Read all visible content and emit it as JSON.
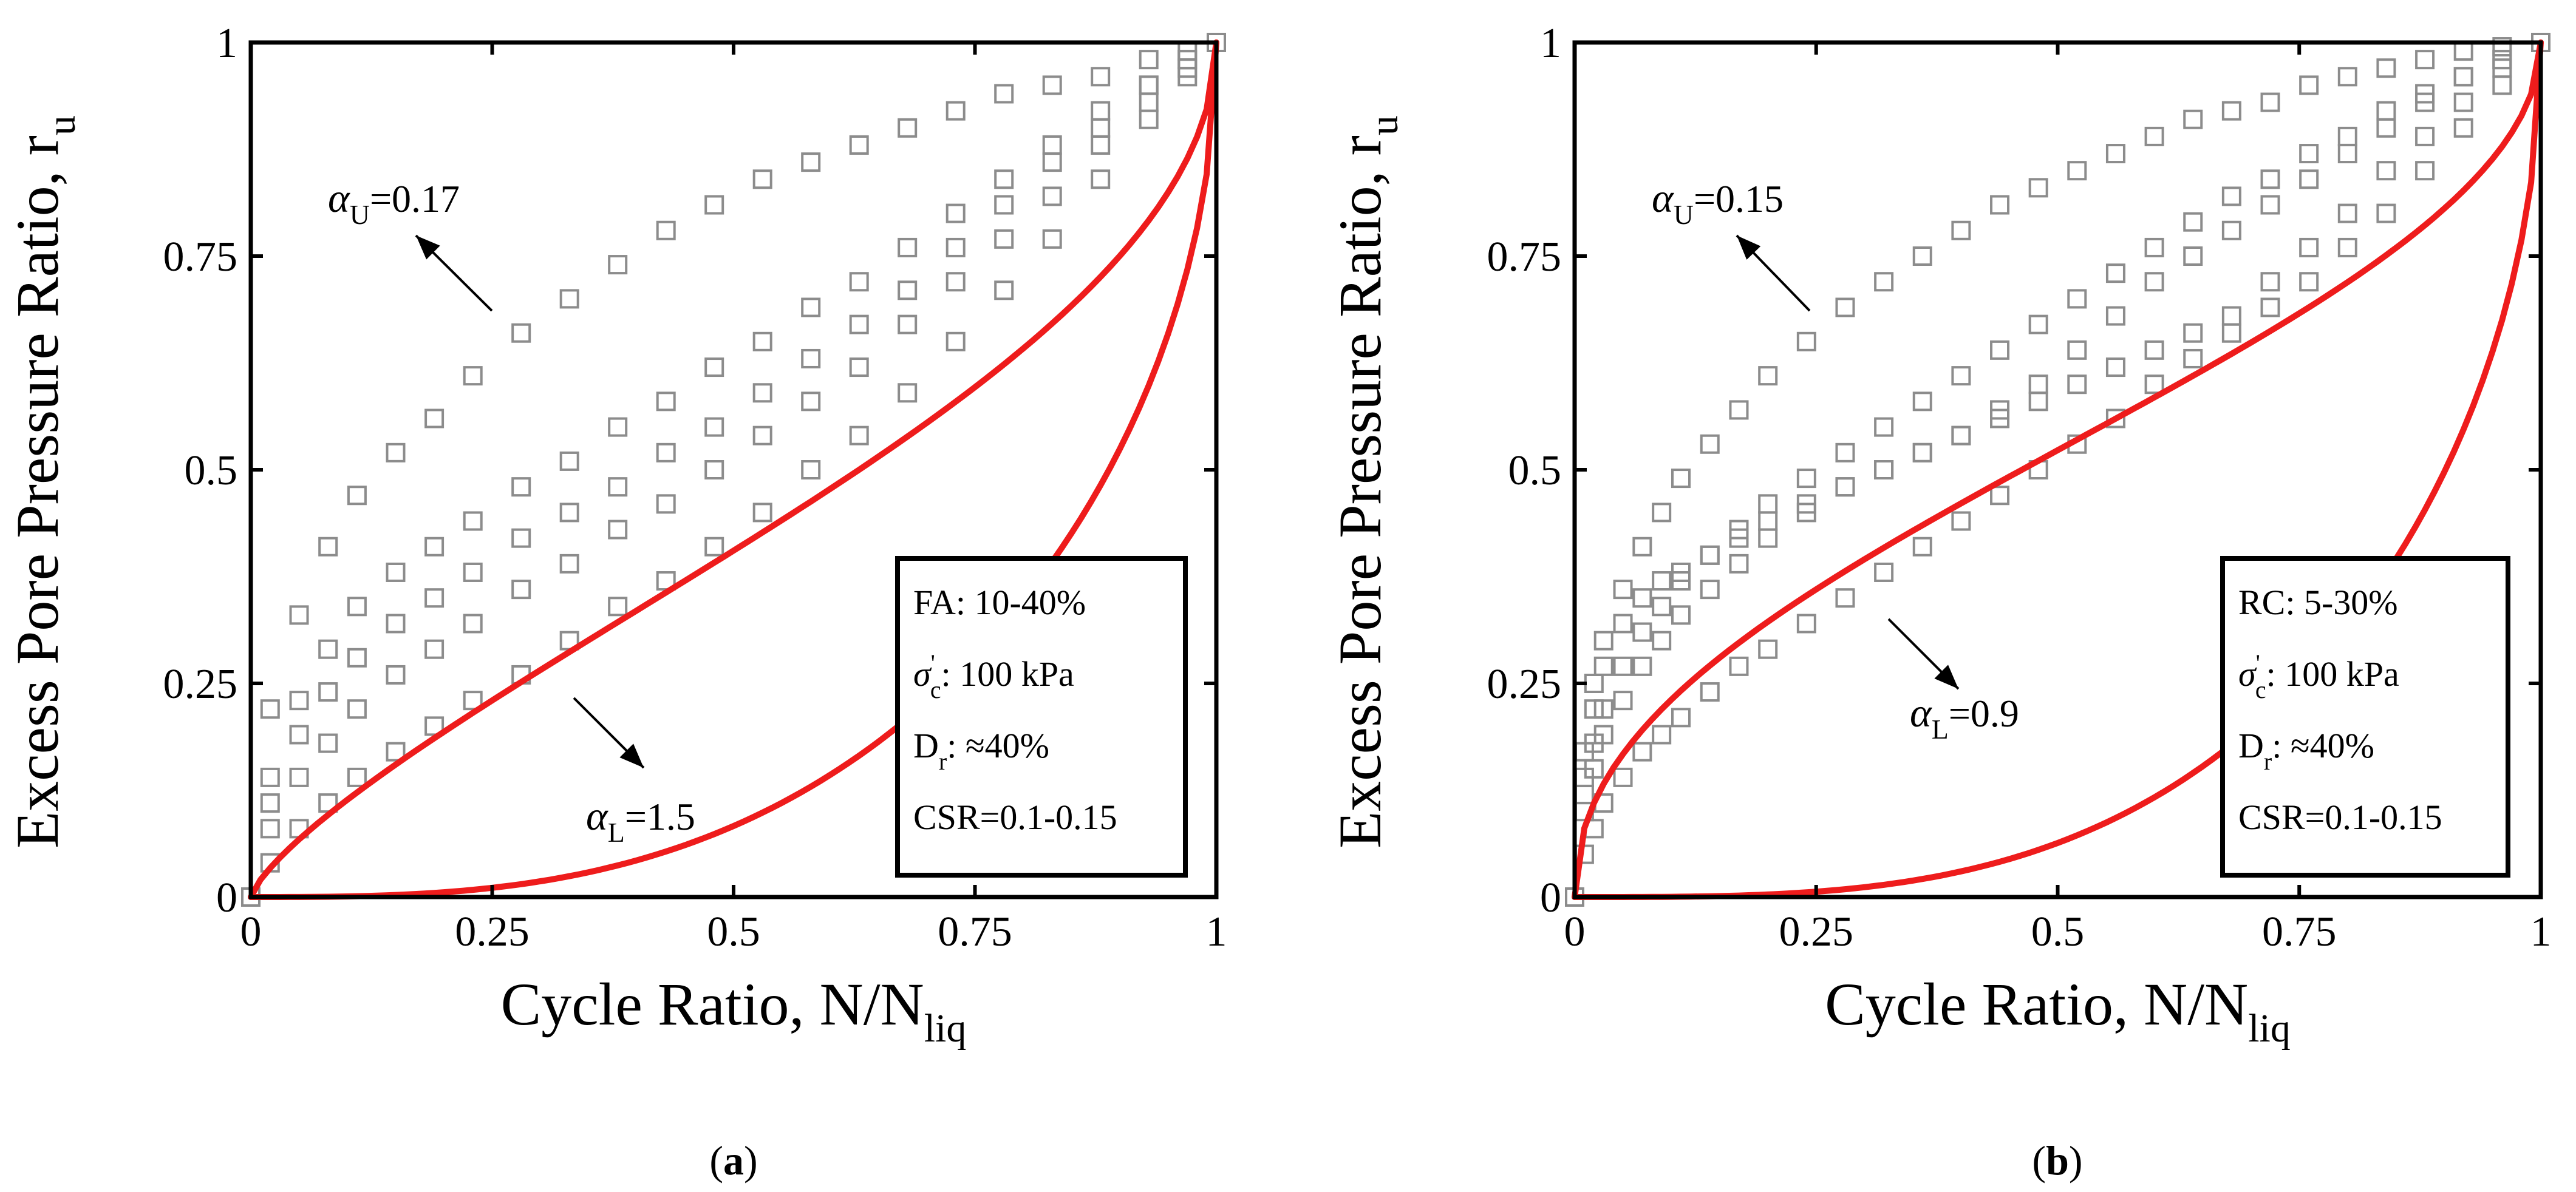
{
  "chart_data": [
    {
      "type": "scatter",
      "panel_label": "a",
      "xlabel": "Cycle Ratio, N/N",
      "xlabel_sub": "liq",
      "ylabel": "Excess Pore Pressure Ratio, r",
      "ylabel_sub": "u",
      "xlim": [
        0,
        1
      ],
      "ylim": [
        0,
        1
      ],
      "xticks": [
        "0",
        "0.25",
        "0.5",
        "0.75",
        "1"
      ],
      "yticks": [
        "0",
        "0.25",
        "0.5",
        "0.75",
        "1"
      ],
      "grid": false,
      "bounds": {
        "upper": {
          "greek": "α",
          "sub": "U",
          "value": "=0.17",
          "alpha": 0.17
        },
        "lower": {
          "greek": "α",
          "sub": "L",
          "value": "=1.5",
          "alpha": 1.5
        }
      },
      "legend": {
        "position": "lower-right",
        "lines": [
          {
            "text": "FA: 10-40%"
          },
          {
            "sym": "σ",
            "sup": "'",
            "sub": "c",
            "text": ": 100 kPa"
          },
          {
            "sym": "D",
            "sub": "r",
            "text": ": ≈40%"
          },
          {
            "text": "CSR=0.1-0.15"
          }
        ]
      },
      "series": [
        {
          "x": [
            0,
            0.02,
            0.05,
            0.08,
            0.11,
            0.15,
            0.19,
            0.23,
            0.28,
            0.33,
            0.38,
            0.43,
            0.48,
            0.53,
            0.58,
            0.63,
            0.68,
            0.73,
            0.78,
            0.83,
            0.88,
            0.93,
            0.97,
            1.0
          ],
          "y": [
            0,
            0.22,
            0.33,
            0.41,
            0.47,
            0.52,
            0.56,
            0.61,
            0.66,
            0.7,
            0.74,
            0.78,
            0.81,
            0.84,
            0.86,
            0.88,
            0.9,
            0.92,
            0.94,
            0.95,
            0.96,
            0.98,
            0.99,
            1.0
          ]
        },
        {
          "x": [
            0,
            0.02,
            0.05,
            0.08,
            0.11,
            0.15,
            0.19,
            0.23,
            0.28,
            0.33,
            0.38,
            0.43,
            0.48,
            0.53,
            0.58,
            0.63,
            0.68,
            0.73,
            0.78,
            0.83,
            0.88,
            0.93,
            0.97,
            1.0
          ],
          "y": [
            0,
            0.14,
            0.23,
            0.29,
            0.34,
            0.38,
            0.41,
            0.44,
            0.48,
            0.51,
            0.55,
            0.58,
            0.62,
            0.65,
            0.69,
            0.72,
            0.76,
            0.8,
            0.84,
            0.88,
            0.92,
            0.95,
            0.98,
            1.0
          ]
        },
        {
          "x": [
            0,
            0.02,
            0.05,
            0.08,
            0.11,
            0.15,
            0.19,
            0.23,
            0.28,
            0.33,
            0.38,
            0.43,
            0.48,
            0.53,
            0.58,
            0.63,
            0.68,
            0.73,
            0.78,
            0.83,
            0.88,
            0.93,
            0.97,
            1.0
          ],
          "y": [
            0,
            0.11,
            0.19,
            0.24,
            0.28,
            0.32,
            0.35,
            0.38,
            0.42,
            0.45,
            0.48,
            0.52,
            0.55,
            0.59,
            0.63,
            0.67,
            0.71,
            0.76,
            0.81,
            0.86,
            0.9,
            0.95,
            0.98,
            1.0
          ]
        },
        {
          "x": [
            0,
            0.02,
            0.05,
            0.08,
            0.11,
            0.15,
            0.19,
            0.23,
            0.28,
            0.33,
            0.38,
            0.43,
            0.48,
            0.53,
            0.58,
            0.63,
            0.68,
            0.73,
            0.78,
            0.83,
            0.88,
            0.93,
            0.97,
            1.0
          ],
          "y": [
            0,
            0.08,
            0.14,
            0.18,
            0.22,
            0.26,
            0.29,
            0.32,
            0.36,
            0.39,
            0.43,
            0.46,
            0.5,
            0.54,
            0.58,
            0.62,
            0.67,
            0.72,
            0.77,
            0.82,
            0.88,
            0.93,
            0.97,
            1.0
          ]
        },
        {
          "x": [
            0,
            0.02,
            0.05,
            0.08,
            0.11,
            0.15,
            0.19,
            0.23,
            0.28,
            0.33,
            0.38,
            0.43,
            0.48,
            0.53,
            0.58,
            0.63,
            0.68,
            0.73,
            0.78,
            0.83,
            0.88,
            0.93,
            0.97,
            1.0
          ],
          "y": [
            0,
            0.04,
            0.08,
            0.11,
            0.14,
            0.17,
            0.2,
            0.23,
            0.26,
            0.3,
            0.34,
            0.37,
            0.41,
            0.45,
            0.5,
            0.54,
            0.59,
            0.65,
            0.71,
            0.77,
            0.84,
            0.91,
            0.96,
            1.0
          ]
        }
      ]
    },
    {
      "type": "scatter",
      "panel_label": "b",
      "xlabel": "Cycle Ratio, N/N",
      "xlabel_sub": "liq",
      "ylabel": "Excess Pore Pressure Ratio, r",
      "ylabel_sub": "u",
      "xlim": [
        0,
        1
      ],
      "ylim": [
        0,
        1
      ],
      "xticks": [
        "0",
        "0.25",
        "0.5",
        "0.75",
        "1"
      ],
      "yticks": [
        "0",
        "0.25",
        "0.5",
        "0.75",
        "1"
      ],
      "grid": false,
      "bounds": {
        "upper": {
          "greek": "α",
          "sub": "U",
          "value": "=0.15",
          "alpha": 0.15
        },
        "lower": {
          "greek": "α",
          "sub": "L",
          "value": "=0.9",
          "alpha": 0.9
        }
      },
      "legend": {
        "position": "lower-right",
        "lines": [
          {
            "text": "RC: 5-30%"
          },
          {
            "sym": "σ",
            "sup": "'",
            "sub": "c",
            "text": ": 100 kPa"
          },
          {
            "sym": "D",
            "sub": "r",
            "text": ": ≈40%"
          },
          {
            "text": "CSR=0.1-0.15"
          }
        ]
      },
      "series": [
        {
          "x": [
            0,
            0.01,
            0.02,
            0.03,
            0.05,
            0.07,
            0.09,
            0.11,
            0.14,
            0.17,
            0.2,
            0.24,
            0.28,
            0.32,
            0.36,
            0.4,
            0.44,
            0.48,
            0.52,
            0.56,
            0.6,
            0.64,
            0.68,
            0.72,
            0.76,
            0.8,
            0.84,
            0.88,
            0.92,
            0.96,
            1.0
          ],
          "y": [
            0,
            0.17,
            0.25,
            0.3,
            0.36,
            0.41,
            0.45,
            0.49,
            0.53,
            0.57,
            0.61,
            0.65,
            0.69,
            0.72,
            0.75,
            0.78,
            0.81,
            0.83,
            0.85,
            0.87,
            0.89,
            0.91,
            0.92,
            0.93,
            0.95,
            0.96,
            0.97,
            0.98,
            0.99,
            0.995,
            1.0
          ]
        },
        {
          "x": [
            0,
            0.01,
            0.02,
            0.03,
            0.05,
            0.07,
            0.09,
            0.11,
            0.14,
            0.17,
            0.2,
            0.24,
            0.28,
            0.32,
            0.36,
            0.4,
            0.44,
            0.48,
            0.52,
            0.56,
            0.6,
            0.64,
            0.68,
            0.72,
            0.76,
            0.8,
            0.84,
            0.88,
            0.92,
            0.96,
            1.0
          ],
          "y": [
            0,
            0.12,
            0.18,
            0.22,
            0.27,
            0.31,
            0.34,
            0.37,
            0.4,
            0.43,
            0.46,
            0.49,
            0.52,
            0.55,
            0.58,
            0.61,
            0.64,
            0.67,
            0.7,
            0.73,
            0.76,
            0.79,
            0.82,
            0.84,
            0.87,
            0.89,
            0.92,
            0.94,
            0.96,
            0.98,
            1.0
          ]
        },
        {
          "x": [
            0,
            0.01,
            0.02,
            0.03,
            0.05,
            0.07,
            0.09,
            0.11,
            0.14,
            0.17,
            0.2,
            0.24,
            0.28,
            0.32,
            0.36,
            0.4,
            0.44,
            0.48,
            0.52,
            0.56,
            0.6,
            0.64,
            0.68,
            0.72,
            0.76,
            0.8,
            0.84,
            0.88,
            0.92,
            0.96,
            1.0
          ],
          "y": [
            0,
            0.14,
            0.22,
            0.27,
            0.32,
            0.35,
            0.37,
            0.38,
            0.4,
            0.42,
            0.44,
            0.46,
            0.48,
            0.5,
            0.52,
            0.54,
            0.57,
            0.6,
            0.64,
            0.68,
            0.72,
            0.75,
            0.78,
            0.81,
            0.84,
            0.87,
            0.9,
            0.93,
            0.96,
            0.98,
            1.0
          ]
        },
        {
          "x": [
            0,
            0.01,
            0.02,
            0.03,
            0.05,
            0.07,
            0.09,
            0.11,
            0.14,
            0.17,
            0.2,
            0.24,
            0.28,
            0.32,
            0.36,
            0.4,
            0.44,
            0.48,
            0.52,
            0.56,
            0.6,
            0.64,
            0.68,
            0.72,
            0.76,
            0.8,
            0.84,
            0.88,
            0.92,
            0.96,
            1.0
          ],
          "y": [
            0,
            0.1,
            0.15,
            0.19,
            0.23,
            0.27,
            0.3,
            0.33,
            0.36,
            0.39,
            0.42,
            0.45,
            0.48,
            0.5,
            0.52,
            0.54,
            0.56,
            0.58,
            0.6,
            0.62,
            0.64,
            0.66,
            0.68,
            0.72,
            0.76,
            0.8,
            0.85,
            0.89,
            0.93,
            0.97,
            1.0
          ]
        },
        {
          "x": [
            0,
            0.01,
            0.02,
            0.03,
            0.05,
            0.07,
            0.09,
            0.11,
            0.14,
            0.17,
            0.2,
            0.24,
            0.28,
            0.32,
            0.36,
            0.4,
            0.44,
            0.48,
            0.52,
            0.56,
            0.6,
            0.64,
            0.68,
            0.72,
            0.76,
            0.8,
            0.84,
            0.88,
            0.92,
            0.96,
            1.0
          ],
          "y": [
            0,
            0.05,
            0.08,
            0.11,
            0.14,
            0.17,
            0.19,
            0.21,
            0.24,
            0.27,
            0.29,
            0.32,
            0.35,
            0.38,
            0.41,
            0.44,
            0.47,
            0.5,
            0.53,
            0.56,
            0.6,
            0.63,
            0.66,
            0.69,
            0.72,
            0.76,
            0.8,
            0.85,
            0.9,
            0.95,
            1.0
          ]
        }
      ]
    }
  ]
}
